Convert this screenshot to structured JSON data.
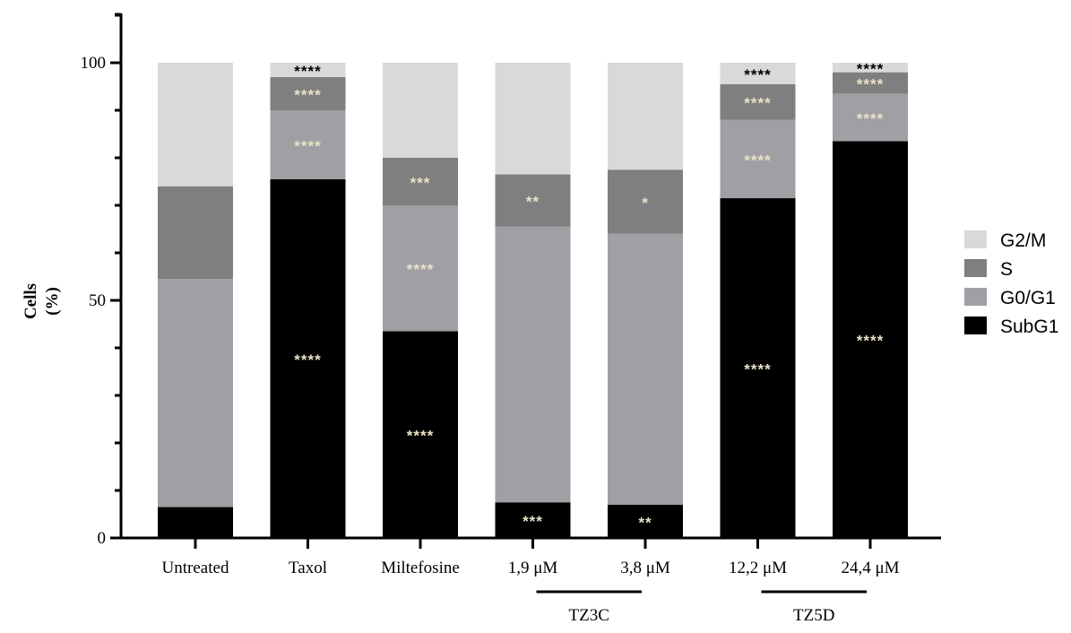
{
  "chart_data": {
    "type": "bar",
    "stacked": true,
    "ylabel": [
      "Cells",
      "(%)"
    ],
    "ylim": [
      0,
      100
    ],
    "yticks": [
      0,
      50,
      100
    ],
    "legend_position": "right",
    "categories": [
      "Untreated",
      "Taxol",
      "Miltefosine",
      "1,9 μM",
      "3,8 μM",
      "12,2 μM",
      "24,4 μM"
    ],
    "groups": [
      {
        "label": "TZ3C",
        "categories": [
          "1,9 μM",
          "3,8 μM"
        ]
      },
      {
        "label": "TZ5D",
        "categories": [
          "12,2 μM",
          "24,4 μM"
        ]
      }
    ],
    "series": [
      {
        "name": "SubG1",
        "color": "#000000",
        "values": [
          6.5,
          75.5,
          43.5,
          7.5,
          7.0,
          71.5,
          83.5
        ],
        "annotations": [
          "",
          "****",
          "****",
          "***",
          "**",
          "****",
          "****"
        ]
      },
      {
        "name": "G0/G1",
        "color": "#a0a0a4",
        "values": [
          48.0,
          14.5,
          26.5,
          58.0,
          57.0,
          16.5,
          10.0
        ],
        "annotations": [
          "",
          "****",
          "****",
          "",
          "",
          "****",
          "****"
        ]
      },
      {
        "name": "S",
        "color": "#7f7f7f",
        "values": [
          19.5,
          7.0,
          10.0,
          11.0,
          13.5,
          7.5,
          4.5
        ],
        "annotations": [
          "",
          "****",
          "***",
          "**",
          "*",
          "****",
          "****"
        ]
      },
      {
        "name": "G2/M",
        "color": "#d9d9d9",
        "values": [
          26.0,
          3.0,
          20.0,
          23.5,
          22.5,
          4.5,
          2.0
        ],
        "annotations": [
          "",
          "****",
          "",
          "",
          "",
          "****",
          "****"
        ]
      }
    ],
    "annotation_colors": {
      "light": "#e8e2c8",
      "dark": "#000000"
    }
  }
}
